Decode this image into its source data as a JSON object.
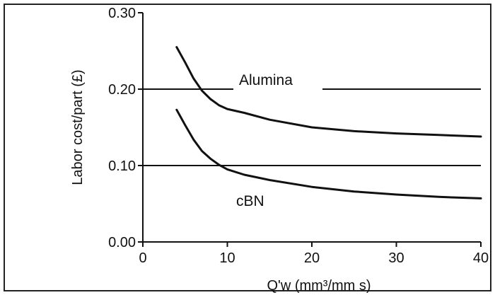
{
  "chart_data": {
    "type": "line",
    "xlabel": "Q'w (mm³/mm s)",
    "ylabel": "Labor cost/part (£)",
    "xlim": [
      0,
      40
    ],
    "ylim": [
      0,
      0.3
    ],
    "x_ticks": [
      "0",
      "10",
      "20",
      "30",
      "40"
    ],
    "y_ticks": [
      "0.00",
      "0.10",
      "0.20",
      "0.30"
    ],
    "grid": "horizontal at 0.10 and 0.20",
    "series": [
      {
        "name": "Alumina",
        "x": [
          4,
          5,
          6,
          7,
          8,
          9,
          10,
          12,
          15,
          20,
          25,
          30,
          35,
          40
        ],
        "y": [
          0.255,
          0.235,
          0.214,
          0.198,
          0.187,
          0.179,
          0.174,
          0.169,
          0.16,
          0.15,
          0.145,
          0.142,
          0.14,
          0.138
        ]
      },
      {
        "name": "cBN",
        "x": [
          4,
          5,
          6,
          7,
          8,
          9,
          10,
          12,
          15,
          20,
          25,
          30,
          35,
          40
        ],
        "y": [
          0.173,
          0.153,
          0.134,
          0.119,
          0.109,
          0.101,
          0.095,
          0.088,
          0.081,
          0.072,
          0.066,
          0.062,
          0.059,
          0.057
        ]
      }
    ]
  }
}
